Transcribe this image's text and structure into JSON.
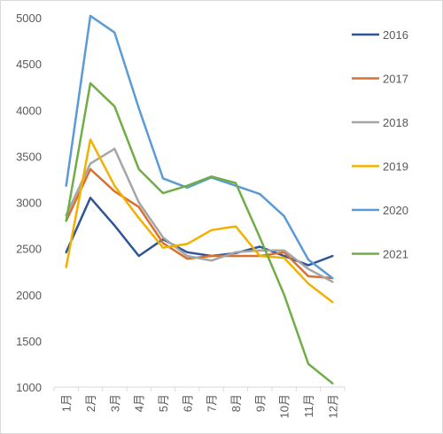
{
  "chart_data": {
    "type": "line",
    "categories": [
      "1月",
      "2月",
      "3月",
      "4月",
      "5月",
      "6月",
      "7月",
      "8月",
      "9月",
      "10月",
      "11月",
      "12月"
    ],
    "ylim": [
      1000,
      5000
    ],
    "yticks": [
      1000,
      1500,
      2000,
      2500,
      3000,
      3500,
      4000,
      4500,
      5000
    ],
    "grid": false,
    "legend_position": "right",
    "series": [
      {
        "name": "2016",
        "color": "#2E5597",
        "values": [
          2460,
          3050,
          2750,
          2420,
          2600,
          2460,
          2420,
          2450,
          2520,
          2420,
          2320,
          2420
        ]
      },
      {
        "name": "2017",
        "color": "#D8702E",
        "values": [
          2800,
          3360,
          3120,
          2950,
          2560,
          2390,
          2420,
          2420,
          2420,
          2460,
          2200,
          2180
        ]
      },
      {
        "name": "2018",
        "color": "#A5A5A5",
        "values": [
          2860,
          3420,
          3580,
          3000,
          2620,
          2420,
          2370,
          2460,
          2480,
          2480,
          2280,
          2140
        ]
      },
      {
        "name": "2019",
        "color": "#F2B100",
        "values": [
          2300,
          3680,
          3180,
          2830,
          2510,
          2550,
          2700,
          2740,
          2420,
          2400,
          2120,
          1920
        ]
      },
      {
        "name": "2020",
        "color": "#5B9BD5",
        "values": [
          3180,
          5020,
          4840,
          4020,
          3260,
          3160,
          3270,
          3180,
          3090,
          2850,
          2380,
          2180
        ]
      },
      {
        "name": "2021",
        "color": "#70AD47",
        "values": [
          2800,
          4290,
          4040,
          3360,
          3100,
          3180,
          3280,
          3210,
          2620,
          2000,
          1250,
          1040
        ]
      }
    ]
  }
}
